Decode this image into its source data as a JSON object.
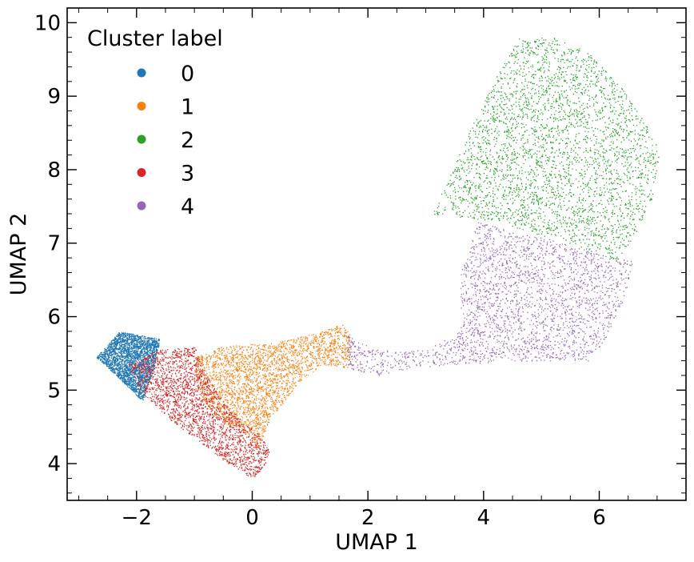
{
  "chart_data": {
    "type": "scatter",
    "xlabel": "UMAP 1",
    "ylabel": "UMAP 2",
    "xlim": [
      -3.2,
      7.5
    ],
    "ylim": [
      3.5,
      10.2
    ],
    "xticks": [
      -2,
      0,
      2,
      4,
      6
    ],
    "xtick_labels": [
      "−2",
      "0",
      "2",
      "4",
      "6"
    ],
    "yticks": [
      4,
      5,
      6,
      7,
      8,
      9,
      10
    ],
    "ytick_labels": [
      "4",
      "5",
      "6",
      "7",
      "8",
      "9",
      "10"
    ],
    "grid": false,
    "legend": {
      "title": "Cluster label",
      "placement": "top-left"
    },
    "series": [
      {
        "name": "0",
        "color": "#1f77b4",
        "region": [
          [
            -2.7,
            5.45
          ],
          [
            -2.3,
            5.8
          ],
          [
            -1.6,
            5.7
          ],
          [
            -1.7,
            5.3
          ],
          [
            -1.9,
            4.85
          ],
          [
            -2.35,
            5.2
          ]
        ],
        "points": 2600
      },
      {
        "name": "1",
        "color": "#ff7f0e",
        "region": [
          [
            -1.0,
            5.45
          ],
          [
            -0.5,
            5.6
          ],
          [
            0.4,
            5.65
          ],
          [
            1.2,
            5.8
          ],
          [
            1.55,
            5.9
          ],
          [
            1.7,
            5.75
          ],
          [
            1.7,
            5.3
          ],
          [
            1.2,
            5.35
          ],
          [
            0.8,
            5.1
          ],
          [
            0.5,
            4.8
          ],
          [
            0.3,
            4.6
          ],
          [
            0.1,
            4.2
          ],
          [
            -0.1,
            4.4
          ],
          [
            -0.6,
            4.6
          ],
          [
            -0.95,
            5.0
          ]
        ],
        "points": 9000
      },
      {
        "name": "2",
        "color": "#2ca02c",
        "region": [
          [
            3.1,
            7.4
          ],
          [
            3.4,
            7.9
          ],
          [
            3.8,
            8.6
          ],
          [
            4.3,
            9.4
          ],
          [
            4.6,
            9.8
          ],
          [
            5.2,
            9.8
          ],
          [
            5.8,
            9.6
          ],
          [
            6.4,
            9.1
          ],
          [
            6.9,
            8.5
          ],
          [
            7.05,
            8.2
          ],
          [
            6.9,
            7.6
          ],
          [
            6.6,
            7.1
          ],
          [
            6.3,
            6.75
          ],
          [
            5.5,
            7.0
          ],
          [
            4.8,
            7.15
          ],
          [
            4.4,
            7.25
          ],
          [
            3.7,
            7.35
          ]
        ],
        "points": 9500
      },
      {
        "name": "3",
        "color": "#d62728",
        "region": [
          [
            -2.15,
            5.35
          ],
          [
            -1.6,
            5.55
          ],
          [
            -1.0,
            5.6
          ],
          [
            -0.8,
            5.2
          ],
          [
            -0.55,
            4.9
          ],
          [
            -0.2,
            4.6
          ],
          [
            0.1,
            4.4
          ],
          [
            0.3,
            4.2
          ],
          [
            0.2,
            3.95
          ],
          [
            0.0,
            3.8
          ],
          [
            -0.5,
            4.05
          ],
          [
            -1.0,
            4.35
          ],
          [
            -1.5,
            4.65
          ],
          [
            -1.9,
            4.95
          ]
        ],
        "points": 7000
      },
      {
        "name": "4",
        "color": "#9467bd",
        "region": [
          [
            1.6,
            5.3
          ],
          [
            1.65,
            5.75
          ],
          [
            2.2,
            5.55
          ],
          [
            3.0,
            5.55
          ],
          [
            3.6,
            5.8
          ],
          [
            3.6,
            6.6
          ],
          [
            3.9,
            7.3
          ],
          [
            4.5,
            7.15
          ],
          [
            5.2,
            7.05
          ],
          [
            6.0,
            6.85
          ],
          [
            6.6,
            6.75
          ],
          [
            6.4,
            6.2
          ],
          [
            6.1,
            5.7
          ],
          [
            5.8,
            5.4
          ],
          [
            5.2,
            5.4
          ],
          [
            4.4,
            5.4
          ],
          [
            3.5,
            5.35
          ],
          [
            2.7,
            5.3
          ],
          [
            2.2,
            5.2
          ]
        ],
        "points": 6500
      }
    ]
  }
}
